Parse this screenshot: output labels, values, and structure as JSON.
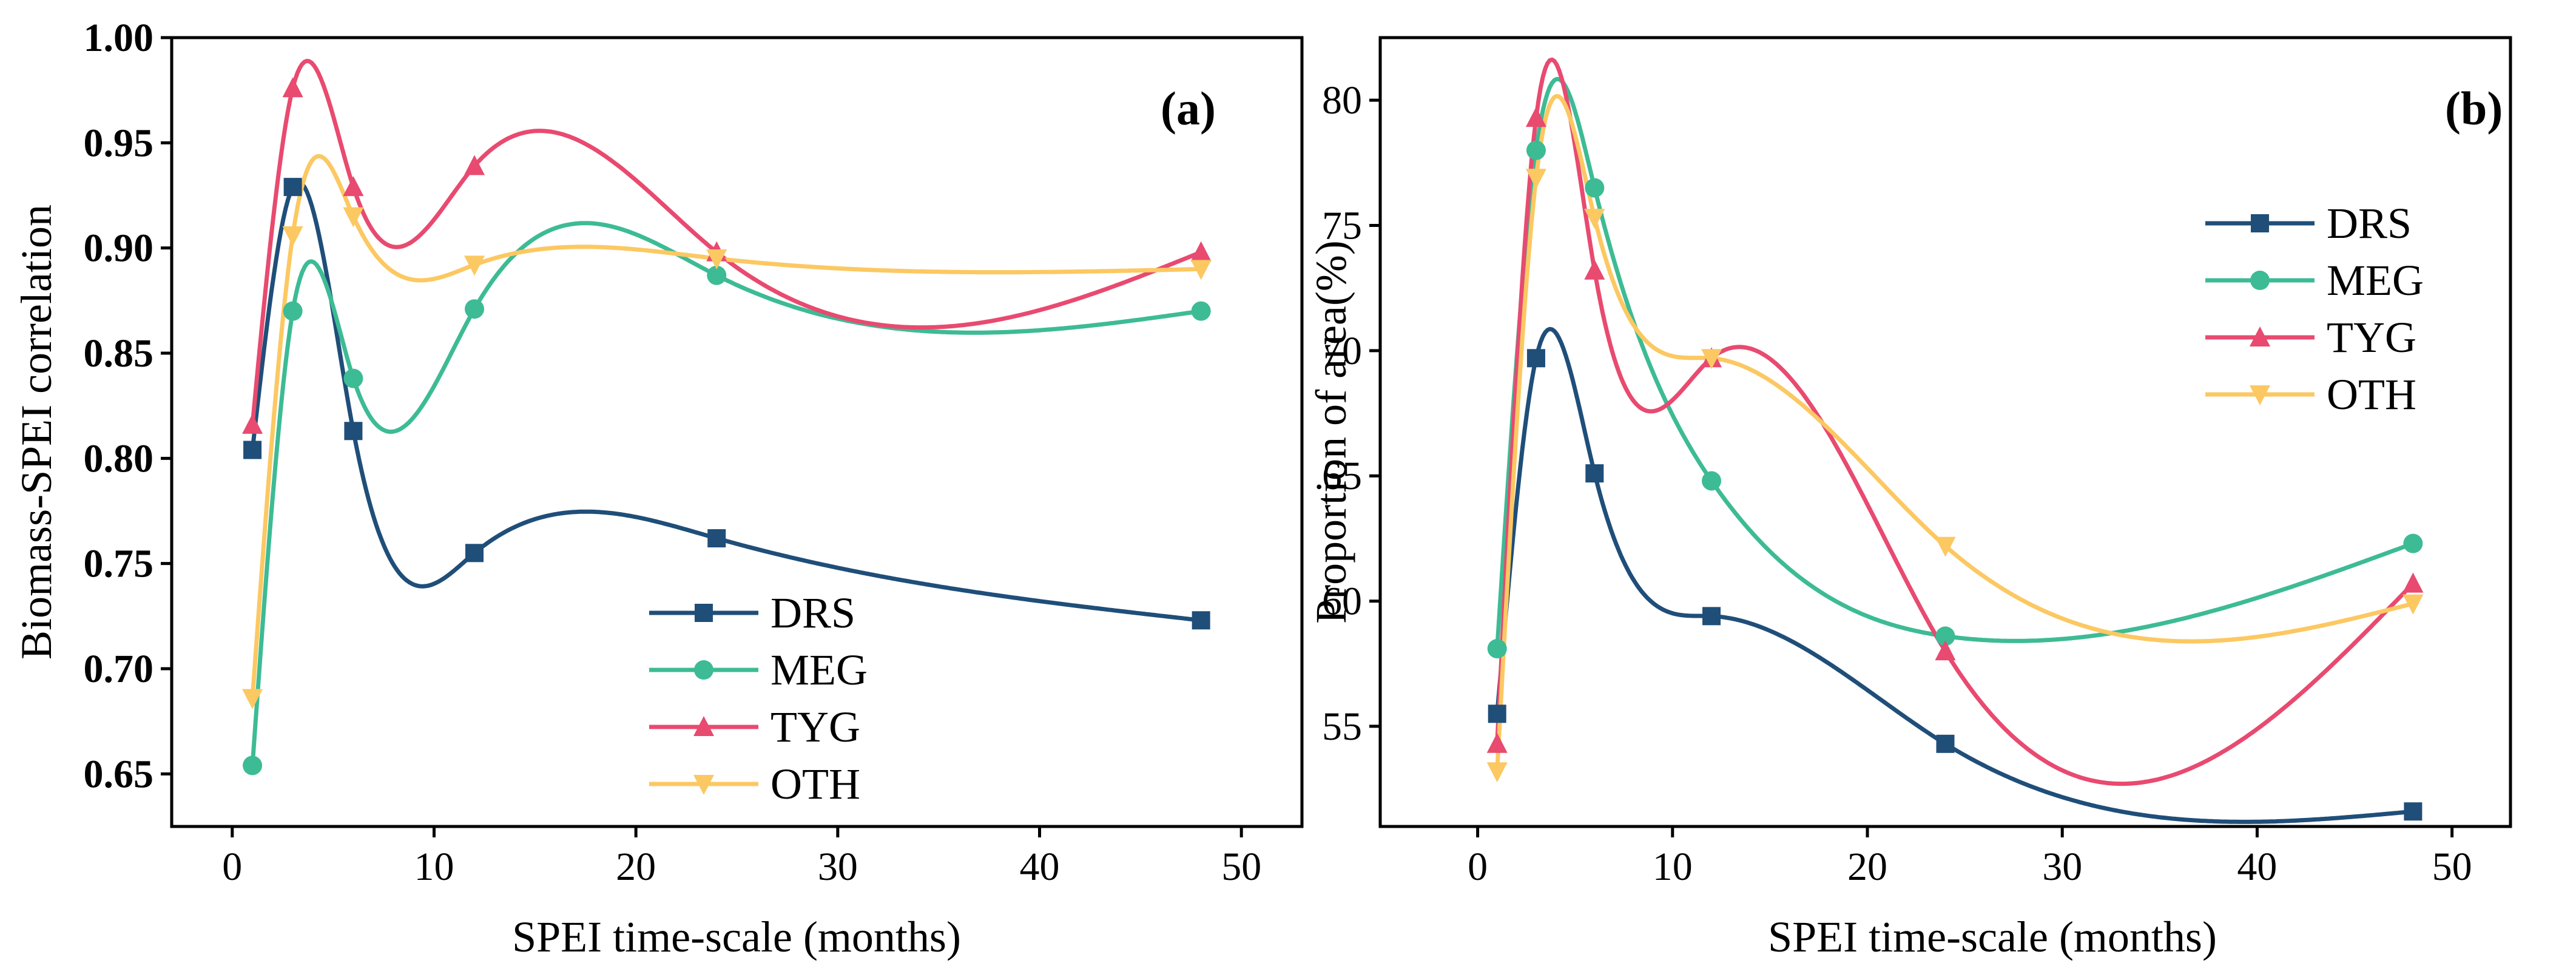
{
  "series_colors": {
    "DRS": "#1f4e79",
    "MEG": "#3dbb94",
    "TYG": "#e84a70",
    "OTH": "#fcc862"
  },
  "series_markers": {
    "DRS": "square",
    "MEG": "circle",
    "TYG": "triangle-up",
    "OTH": "triangle-down"
  },
  "chart_data": [
    {
      "id": "a",
      "type": "line",
      "panel_label": "(a)",
      "xlabel": "SPEI time-scale (months)",
      "ylabel": "Biomass-SPEI correlation",
      "xlim": [
        -3,
        53
      ],
      "ylim": [
        0.625,
        1.0
      ],
      "xticks": [
        0,
        10,
        20,
        30,
        40,
        50
      ],
      "xtick_labels": [
        "0",
        "10",
        "20",
        "30",
        "40",
        "50"
      ],
      "yticks": [
        0.65,
        0.7,
        0.75,
        0.8,
        0.85,
        0.9,
        0.95,
        1.0
      ],
      "ytick_labels": [
        "0.65",
        "0.70",
        "0.75",
        "0.80",
        "0.85",
        "0.90",
        "0.95",
        "1.00"
      ],
      "legend_position": "bottom-center",
      "x": [
        1,
        3,
        6,
        12,
        24,
        48
      ],
      "series": [
        {
          "name": "DRS",
          "values": [
            0.804,
            0.929,
            0.813,
            0.755,
            0.762,
            0.723
          ]
        },
        {
          "name": "MEG",
          "values": [
            0.654,
            0.87,
            0.838,
            0.871,
            0.887,
            0.87
          ]
        },
        {
          "name": "TYG",
          "values": [
            0.816,
            0.976,
            0.929,
            0.939,
            0.898,
            0.898
          ]
        },
        {
          "name": "OTH",
          "values": [
            0.686,
            0.906,
            0.915,
            0.892,
            0.895,
            0.89
          ]
        }
      ]
    },
    {
      "id": "b",
      "type": "line",
      "panel_label": "(b)",
      "xlabel": "SPEI time-scale (months)",
      "ylabel": "Proportion of area(%)",
      "xlim": [
        -5,
        53
      ],
      "ylim": [
        51,
        82.5
      ],
      "xticks": [
        0,
        10,
        20,
        30,
        40,
        50
      ],
      "xtick_labels": [
        "0",
        "10",
        "20",
        "30",
        "40",
        "50"
      ],
      "yticks": [
        55,
        60,
        65,
        70,
        75,
        80
      ],
      "ytick_labels": [
        "55",
        "60",
        "65",
        "70",
        "75",
        "80"
      ],
      "legend_position": "upper-right",
      "x": [
        1,
        3,
        6,
        12,
        24,
        48
      ],
      "series": [
        {
          "name": "DRS",
          "values": [
            55.5,
            69.7,
            65.1,
            59.4,
            54.3,
            51.6
          ]
        },
        {
          "name": "MEG",
          "values": [
            58.1,
            78.0,
            76.5,
            64.8,
            58.6,
            62.3
          ]
        },
        {
          "name": "TYG",
          "values": [
            54.3,
            79.3,
            73.2,
            69.7,
            58.0,
            60.7
          ]
        },
        {
          "name": "OTH",
          "values": [
            53.2,
            76.9,
            75.3,
            69.7,
            62.2,
            59.9
          ]
        }
      ]
    }
  ]
}
